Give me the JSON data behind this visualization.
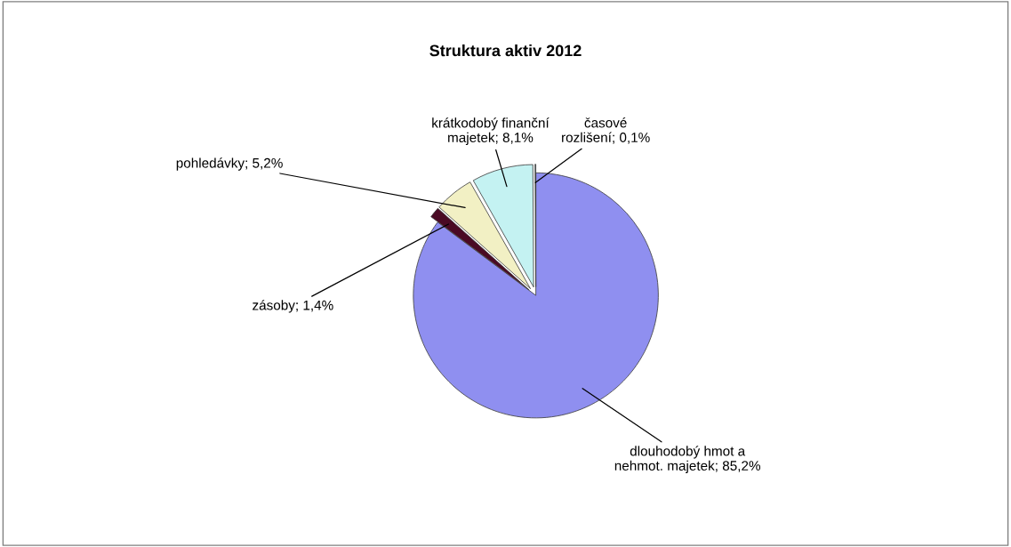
{
  "chart_data": {
    "type": "pie",
    "title": "Struktura aktiv 2012",
    "categories": [
      "dlouhodobý hmot a nehmot. majetek",
      "zásoby",
      "pohledávky",
      "krátkodobý finanční majetek",
      "časové rozlišení"
    ],
    "values": [
      85.2,
      1.4,
      5.2,
      8.1,
      0.1
    ],
    "colors": [
      "#8f8ff0",
      "#4a0a24",
      "#f2f0c4",
      "#c4f2f2",
      "#5e7e86"
    ],
    "value_labels": [
      "85,2%",
      "1,4%",
      "5,2%",
      "8,1%",
      "0,1%"
    ],
    "legend": false
  }
}
